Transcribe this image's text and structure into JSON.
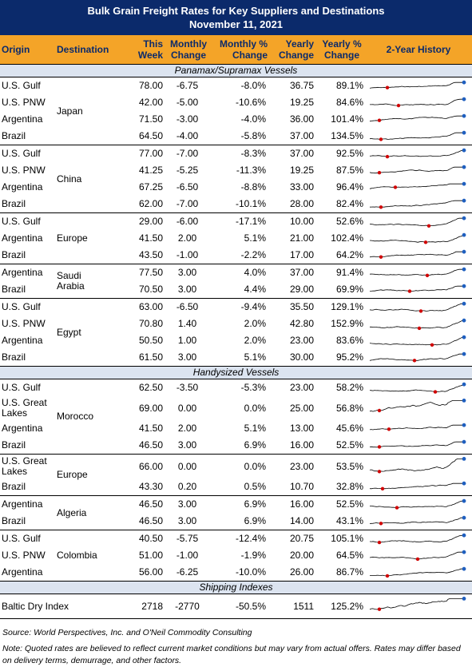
{
  "header": {
    "title": "Bulk Grain Freight Rates for Key Suppliers and Destinations",
    "date": "November 11, 2021"
  },
  "table": {
    "columns": [
      "Origin",
      "Destination",
      "This Week",
      "Monthly Change",
      "Monthly % Change",
      "Yearly Change",
      "Yearly % Change",
      "2-Year History"
    ],
    "sections": [
      {
        "title": "Panamax/Supramax Vessels",
        "groups": [
          {
            "destination": "Japan",
            "rows": [
              {
                "origin": "U.S. Gulf",
                "this_week": "78.00",
                "monthly_change": "-6.75",
                "monthly_pct": "-8.0%",
                "yearly_change": "36.75",
                "yearly_pct": "89.1%"
              },
              {
                "origin": "U.S. PNW",
                "this_week": "42.00",
                "monthly_change": "-5.00",
                "monthly_pct": "-10.6%",
                "yearly_change": "19.25",
                "yearly_pct": "84.6%"
              },
              {
                "origin": "Argentina",
                "this_week": "71.50",
                "monthly_change": "-3.00",
                "monthly_pct": "-4.0%",
                "yearly_change": "36.00",
                "yearly_pct": "101.4%"
              },
              {
                "origin": "Brazil",
                "this_week": "64.50",
                "monthly_change": "-4.00",
                "monthly_pct": "-5.8%",
                "yearly_change": "37.00",
                "yearly_pct": "134.5%"
              }
            ]
          },
          {
            "destination": "China",
            "rows": [
              {
                "origin": "U.S. Gulf",
                "this_week": "77.00",
                "monthly_change": "-7.00",
                "monthly_pct": "-8.3%",
                "yearly_change": "37.00",
                "yearly_pct": "92.5%"
              },
              {
                "origin": "U.S. PNW",
                "this_week": "41.25",
                "monthly_change": "-5.25",
                "monthly_pct": "-11.3%",
                "yearly_change": "19.25",
                "yearly_pct": "87.5%"
              },
              {
                "origin": "Argentina",
                "this_week": "67.25",
                "monthly_change": "-6.50",
                "monthly_pct": "-8.8%",
                "yearly_change": "33.00",
                "yearly_pct": "96.4%"
              },
              {
                "origin": "Brazil",
                "this_week": "62.00",
                "monthly_change": "-7.00",
                "monthly_pct": "-10.1%",
                "yearly_change": "28.00",
                "yearly_pct": "82.4%"
              }
            ]
          },
          {
            "destination": "Europe",
            "rows": [
              {
                "origin": "U.S. Gulf",
                "this_week": "29.00",
                "monthly_change": "-6.00",
                "monthly_pct": "-17.1%",
                "yearly_change": "10.00",
                "yearly_pct": "52.6%"
              },
              {
                "origin": "Argentina",
                "this_week": "41.50",
                "monthly_change": "2.00",
                "monthly_pct": "5.1%",
                "yearly_change": "21.00",
                "yearly_pct": "102.4%"
              },
              {
                "origin": "Brazil",
                "this_week": "43.50",
                "monthly_change": "-1.00",
                "monthly_pct": "-2.2%",
                "yearly_change": "17.00",
                "yearly_pct": "64.2%"
              }
            ]
          },
          {
            "destination": "Saudi Arabia",
            "rows": [
              {
                "origin": "Argentina",
                "this_week": "77.50",
                "monthly_change": "3.00",
                "monthly_pct": "4.0%",
                "yearly_change": "37.00",
                "yearly_pct": "91.4%"
              },
              {
                "origin": "Brazil",
                "this_week": "70.50",
                "monthly_change": "3.00",
                "monthly_pct": "4.4%",
                "yearly_change": "29.00",
                "yearly_pct": "69.9%"
              }
            ]
          },
          {
            "destination": "Egypt",
            "rows": [
              {
                "origin": "U.S. Gulf",
                "this_week": "63.00",
                "monthly_change": "-6.50",
                "monthly_pct": "-9.4%",
                "yearly_change": "35.50",
                "yearly_pct": "129.1%"
              },
              {
                "origin": "U.S. PNW",
                "this_week": "70.80",
                "monthly_change": "1.40",
                "monthly_pct": "2.0%",
                "yearly_change": "42.80",
                "yearly_pct": "152.9%"
              },
              {
                "origin": "Argentina",
                "this_week": "50.50",
                "monthly_change": "1.00",
                "monthly_pct": "2.0%",
                "yearly_change": "23.00",
                "yearly_pct": "83.6%"
              },
              {
                "origin": "Brazil",
                "this_week": "61.50",
                "monthly_change": "3.00",
                "monthly_pct": "5.1%",
                "yearly_change": "30.00",
                "yearly_pct": "95.2%"
              }
            ]
          }
        ]
      },
      {
        "title": "Handysized Vessels",
        "groups": [
          {
            "destination": "Morocco",
            "rows": [
              {
                "origin": "U.S. Gulf",
                "this_week": "62.50",
                "monthly_change": "-3.50",
                "monthly_pct": "-5.3%",
                "yearly_change": "23.00",
                "yearly_pct": "58.2%"
              },
              {
                "origin": "U.S. Great Lakes",
                "this_week": "69.00",
                "monthly_change": "0.00",
                "monthly_pct": "0.0%",
                "yearly_change": "25.00",
                "yearly_pct": "56.8%"
              },
              {
                "origin": "Argentina",
                "this_week": "41.50",
                "monthly_change": "2.00",
                "monthly_pct": "5.1%",
                "yearly_change": "13.00",
                "yearly_pct": "45.6%"
              },
              {
                "origin": "Brazil",
                "this_week": "46.50",
                "monthly_change": "3.00",
                "monthly_pct": "6.9%",
                "yearly_change": "16.00",
                "yearly_pct": "52.5%"
              }
            ]
          },
          {
            "destination": "Europe",
            "rows": [
              {
                "origin": "U.S. Great Lakes",
                "this_week": "66.00",
                "monthly_change": "0.00",
                "monthly_pct": "0.0%",
                "yearly_change": "23.00",
                "yearly_pct": "53.5%"
              },
              {
                "origin": "Brazil",
                "this_week": "43.30",
                "monthly_change": "0.20",
                "monthly_pct": "0.5%",
                "yearly_change": "10.70",
                "yearly_pct": "32.8%"
              }
            ]
          },
          {
            "destination": "Algeria",
            "rows": [
              {
                "origin": "Argentina",
                "this_week": "46.50",
                "monthly_change": "3.00",
                "monthly_pct": "6.9%",
                "yearly_change": "16.00",
                "yearly_pct": "52.5%"
              },
              {
                "origin": "Brazil",
                "this_week": "46.50",
                "monthly_change": "3.00",
                "monthly_pct": "6.9%",
                "yearly_change": "14.00",
                "yearly_pct": "43.1%"
              }
            ]
          },
          {
            "destination": "Colombia",
            "rows": [
              {
                "origin": "U.S. Gulf",
                "this_week": "40.50",
                "monthly_change": "-5.75",
                "monthly_pct": "-12.4%",
                "yearly_change": "20.75",
                "yearly_pct": "105.1%"
              },
              {
                "origin": "U.S. PNW",
                "this_week": "51.00",
                "monthly_change": "-1.00",
                "monthly_pct": "-1.9%",
                "yearly_change": "20.00",
                "yearly_pct": "64.5%"
              },
              {
                "origin": "Argentina",
                "this_week": "56.00",
                "monthly_change": "-6.25",
                "monthly_pct": "-10.0%",
                "yearly_change": "26.00",
                "yearly_pct": "86.7%"
              }
            ]
          }
        ]
      },
      {
        "title": "Shipping Indexes",
        "groups": [
          {
            "rows": [
              {
                "origin": "Baltic Dry Index",
                "this_week": "2718",
                "monthly_change": "-2770",
                "monthly_pct": "-50.5%",
                "yearly_change": "1511",
                "yearly_pct": "125.2%"
              }
            ]
          }
        ]
      }
    ]
  },
  "footer": {
    "source": "Source: World Perspectives, Inc. and O'Neil Commodity Consulting",
    "note": "Note: Quoted rates are believed to reflect current market conditions but may vary from actual offers. Rates may differ based on delivery terms, demurrage, and other factors."
  }
}
